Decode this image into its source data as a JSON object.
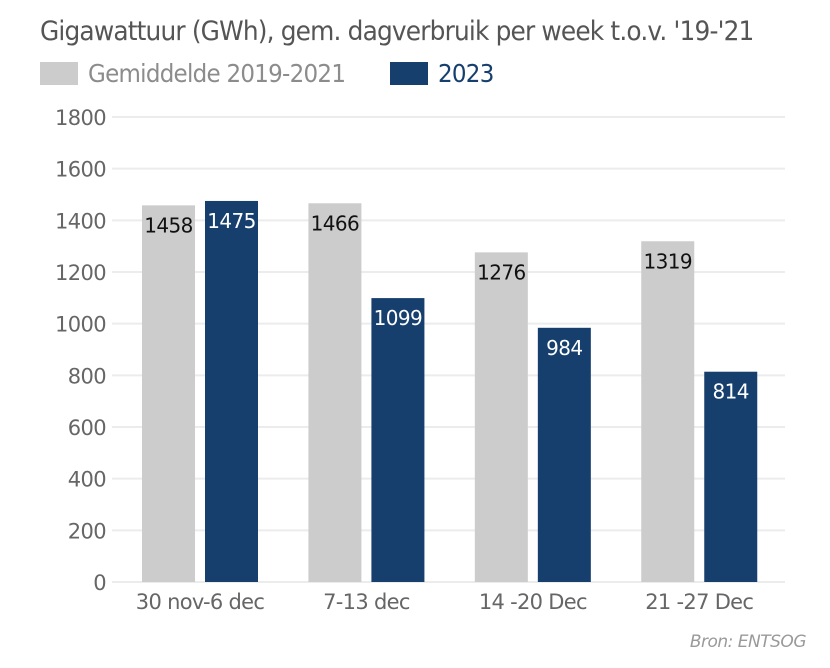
{
  "title": "Gigawattuur (GWh), gem. dagverbruik per week t.o.v. '19-'21",
  "legend": [
    {
      "label": "Gemiddelde 2019-2021",
      "color": "#cccccc",
      "text_color": "#8c8c8c"
    },
    {
      "label": "2023",
      "color": "#163f6e",
      "text_color": "#163f6e"
    }
  ],
  "source": "Bron: ENTSOG",
  "chart_data": {
    "type": "bar",
    "title": "Gigawattuur (GWh), gem. dagverbruik per week t.o.v. '19-'21",
    "xlabel": "",
    "ylabel": "",
    "categories": [
      "30 nov-6 dec",
      "7-13 dec",
      "14 -20 Dec",
      "21 -27 Dec"
    ],
    "series": [
      {
        "name": "Gemiddelde 2019-2021",
        "color": "#cccccc",
        "label_color": "#111111",
        "values": [
          1458,
          1466,
          1276,
          1319
        ]
      },
      {
        "name": "2023",
        "color": "#163f6e",
        "label_color": "#ffffff",
        "values": [
          1475,
          1099,
          984,
          814
        ]
      }
    ],
    "ylim": [
      0,
      1800
    ],
    "yticks": [
      0,
      200,
      400,
      600,
      800,
      1000,
      1200,
      1400,
      1600,
      1800
    ],
    "grid": true,
    "legend_position": "top-left",
    "data_labels": true
  }
}
